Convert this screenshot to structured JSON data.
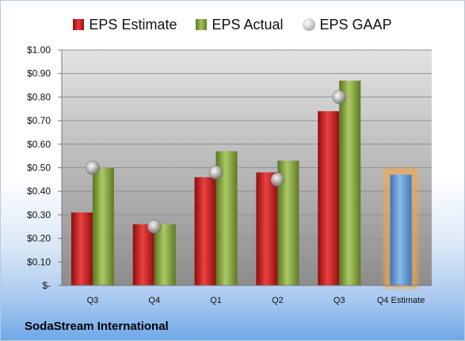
{
  "chart_data": {
    "type": "bar",
    "categories": [
      "Q3",
      "Q4",
      "Q1",
      "Q2",
      "Q3",
      "Q4 Estimate"
    ],
    "series": [
      {
        "name": "EPS Estimate",
        "values": [
          0.31,
          0.26,
          0.46,
          0.48,
          0.74,
          null
        ],
        "color": "#d42626"
      },
      {
        "name": "EPS Actual",
        "values": [
          0.5,
          0.26,
          0.57,
          0.53,
          0.87,
          null
        ],
        "color": "#8db048"
      },
      {
        "name": "EPS GAAP",
        "values": [
          0.5,
          0.25,
          0.48,
          0.45,
          0.8,
          null
        ],
        "color": "#b0b0b0"
      }
    ],
    "highlight": {
      "category": "Q4 Estimate",
      "value": 0.47,
      "color": "#6aa0d8",
      "glow": "#f5a742"
    },
    "ylim": [
      0,
      1.0
    ],
    "yticks": [
      0,
      0.1,
      0.2,
      0.3,
      0.4,
      0.5,
      0.6,
      0.7,
      0.8,
      0.9,
      1.0
    ],
    "ytick_labels": [
      "$-",
      "$0.10",
      "$0.20",
      "$0.30",
      "$0.40",
      "$0.50",
      "$0.60",
      "$0.70",
      "$0.80",
      "$0.90",
      "$1.00"
    ],
    "legend_position": "top",
    "grid": true
  },
  "footer": {
    "company": "SodaStream International"
  }
}
